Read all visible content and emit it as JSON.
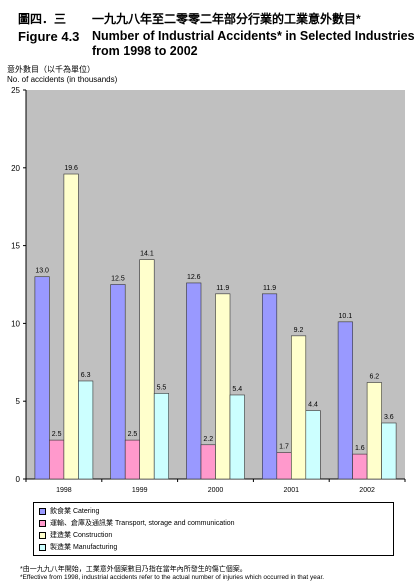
{
  "figure_label_zh": "圖四．三",
  "figure_label_en": "Figure 4.3",
  "footnote_zh": "*由一九九八年開始，工業意外個案數目乃指在當年內所發生的傷亡個案。",
  "footnote_en": "*Effective from 1998, industrial accidents refer to the actual number of injuries which occurred in that year.",
  "chart_data": {
    "type": "bar",
    "title_zh": "一九九八年至二零零二年部分行業的工業意外數目*",
    "title_en": "Number of Industrial Accidents* in Selected Industries from 1998 to 2002",
    "ylabel_zh": "意外數目（以千為單位）",
    "ylabel_en": "No. of accidents (in thousands)",
    "xlabel": "",
    "categories": [
      "1998",
      "1999",
      "2000",
      "2001",
      "2002"
    ],
    "ylim": [
      0,
      25
    ],
    "yticks": [
      0,
      5,
      10,
      15,
      20,
      25
    ],
    "grid": false,
    "legend_position": "bottom",
    "plot_background": "#c0c0c0",
    "series": [
      {
        "name_zh": "飲食業",
        "name_en": "Catering",
        "color": "#9999ff",
        "values": [
          13.0,
          12.5,
          12.6,
          11.9,
          10.1
        ]
      },
      {
        "name_zh": "運輸、倉庫及通訊業",
        "name_en": "Transport, storage and communication",
        "color": "#ff99cc",
        "values": [
          2.5,
          2.5,
          2.2,
          1.7,
          1.6
        ]
      },
      {
        "name_zh": "建造業",
        "name_en": "Construction",
        "color": "#ffffcc",
        "values": [
          19.6,
          14.1,
          11.9,
          9.2,
          6.2
        ]
      },
      {
        "name_zh": "製造業",
        "name_en": "Manufacturing",
        "color": "#ccffff",
        "values": [
          6.3,
          5.5,
          5.4,
          4.4,
          3.6
        ]
      }
    ]
  }
}
